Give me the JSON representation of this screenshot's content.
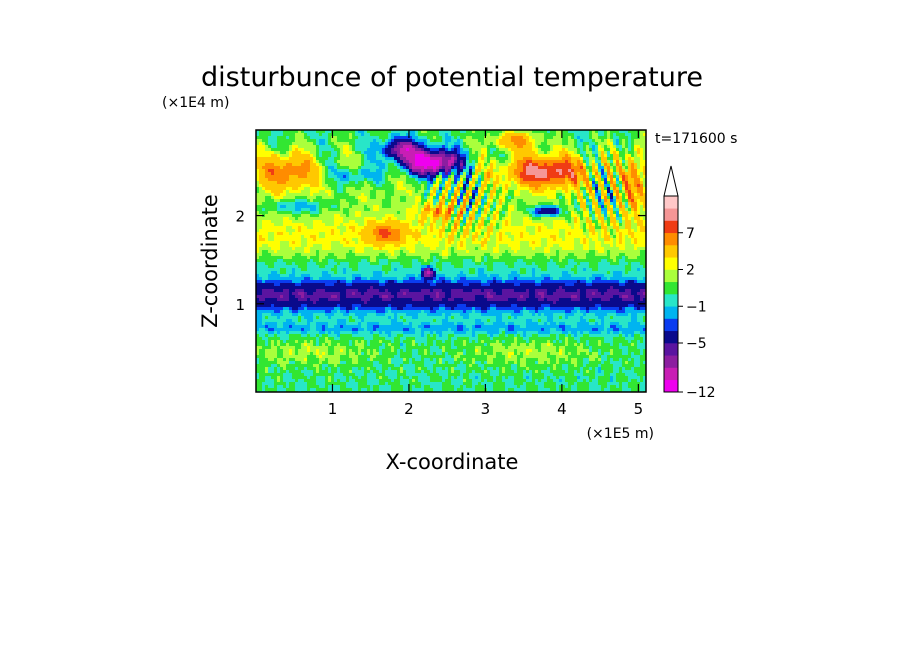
{
  "chart_data": {
    "type": "heatmap",
    "title": "disturbunce of potential temperature",
    "xlabel": "X-coordinate",
    "ylabel": "Z-coordinate",
    "x_unit": "(×1E5 m)",
    "y_unit": "(×1E4 m)",
    "time_label": "t=171600 s",
    "xlim": [
      0,
      5.1
    ],
    "ylim": [
      0,
      2.97
    ],
    "x_ticks": [
      "1",
      "2",
      "3",
      "4",
      "5"
    ],
    "y_ticks": [
      "1",
      "2"
    ],
    "x_tick_values": [
      1,
      2,
      3,
      4,
      5
    ],
    "y_tick_values": [
      1,
      2
    ],
    "colorbar": {
      "extend": "max",
      "levels": [
        -12,
        -10,
        -8,
        -6,
        -5,
        -3,
        -2,
        -1,
        0,
        1,
        2,
        3,
        5,
        7,
        9,
        11
      ],
      "colors": [
        "#ee00ee",
        "#c81eb4",
        "#8c1ea0",
        "#5a14a0",
        "#0a0a8c",
        "#0a3cf0",
        "#00b4f0",
        "#28e6c8",
        "#32e632",
        "#aaff3c",
        "#ffff00",
        "#ffc800",
        "#ff8c00",
        "#f03c14",
        "#f59696",
        "#ffc8c8"
      ],
      "extend_color": "#ffffff",
      "labels": [
        "-12",
        "-5",
        "-1",
        "2",
        "7"
      ],
      "label_values": [
        -12,
        -5,
        -1,
        2,
        7
      ]
    },
    "features": [
      {
        "x": 2.3,
        "z": 2.6,
        "amp": -13,
        "sx": 0.35,
        "sz": 0.14
      },
      {
        "x": 1.9,
        "z": 2.75,
        "amp": -8,
        "sx": 0.25,
        "sz": 0.12
      },
      {
        "x": 3.8,
        "z": 2.5,
        "amp": 9,
        "sx": 0.5,
        "sz": 0.17
      },
      {
        "x": 3.4,
        "z": 2.85,
        "amp": 5,
        "sx": 0.3,
        "sz": 0.1
      },
      {
        "x": 0.4,
        "z": 2.5,
        "amp": 6,
        "sx": 0.35,
        "sz": 0.2
      },
      {
        "x": 1.7,
        "z": 1.8,
        "amp": 5,
        "sx": 0.25,
        "sz": 0.12
      },
      {
        "x": 2.4,
        "z": 2.05,
        "amp": 4,
        "sx": 0.25,
        "sz": 0.09
      },
      {
        "x": 4.95,
        "z": 2.4,
        "amp": 5,
        "sx": 0.15,
        "sz": 0.35
      },
      {
        "x": 3.8,
        "z": 2.05,
        "amp": -6,
        "sx": 0.2,
        "sz": 0.06
      },
      {
        "x": 0.55,
        "z": 2.1,
        "amp": -3,
        "sx": 0.4,
        "sz": 0.08
      },
      {
        "x": 1.3,
        "z": 2.45,
        "amp": -3,
        "sx": 0.3,
        "sz": 0.1
      },
      {
        "x": 2.25,
        "z": 1.35,
        "amp": -8,
        "sx": 0.08,
        "sz": 0.06
      }
    ]
  }
}
